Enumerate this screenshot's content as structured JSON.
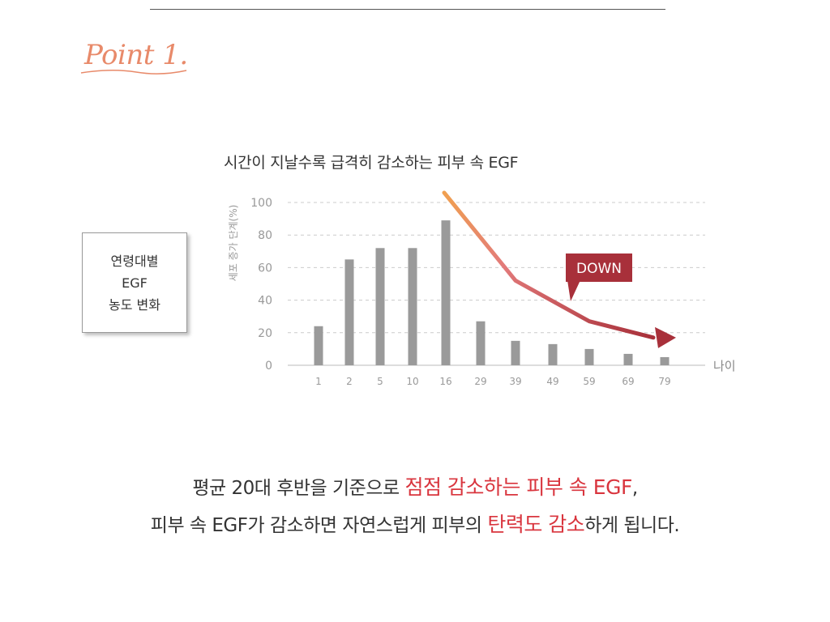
{
  "header": {
    "point_label": "Point 1."
  },
  "chart_data": {
    "type": "bar",
    "title": "시간이 지날수록 급격히 감소하는 피부 속 EGF",
    "xlabel": "나이",
    "ylabel": "세포 증가 단계(%)",
    "categories": [
      "1",
      "2",
      "5",
      "10",
      "16",
      "29",
      "39",
      "49",
      "59",
      "69",
      "79"
    ],
    "values": [
      24,
      65,
      72,
      72,
      89,
      27,
      15,
      13,
      10,
      7,
      5
    ],
    "ylim": [
      0,
      100
    ],
    "yticks": [
      0,
      20,
      40,
      60,
      80,
      100
    ],
    "grid": true,
    "annotation": {
      "label": "DOWN",
      "color": "#a8303a"
    },
    "trend_line": {
      "x": [
        "16",
        "39",
        "59",
        "79"
      ],
      "y": [
        106,
        52,
        27,
        17
      ],
      "colors": [
        "#f0a050",
        "#a8303a"
      ]
    },
    "bar_color": "#9a9a9a"
  },
  "side_box": {
    "lines": [
      "연령대별",
      "EGF",
      "농도 변화"
    ]
  },
  "caption": {
    "line1": {
      "pre": "평균 20대 후반을 기준으로 ",
      "hl": "점점 감소하는 피부 속 EGF",
      "post": ","
    },
    "line2": {
      "pre": "피부 속 EGF가 감소하면 자연스럽게 피부의 ",
      "hl": "탄력도 감소",
      "post": "하게 됩니다."
    }
  }
}
